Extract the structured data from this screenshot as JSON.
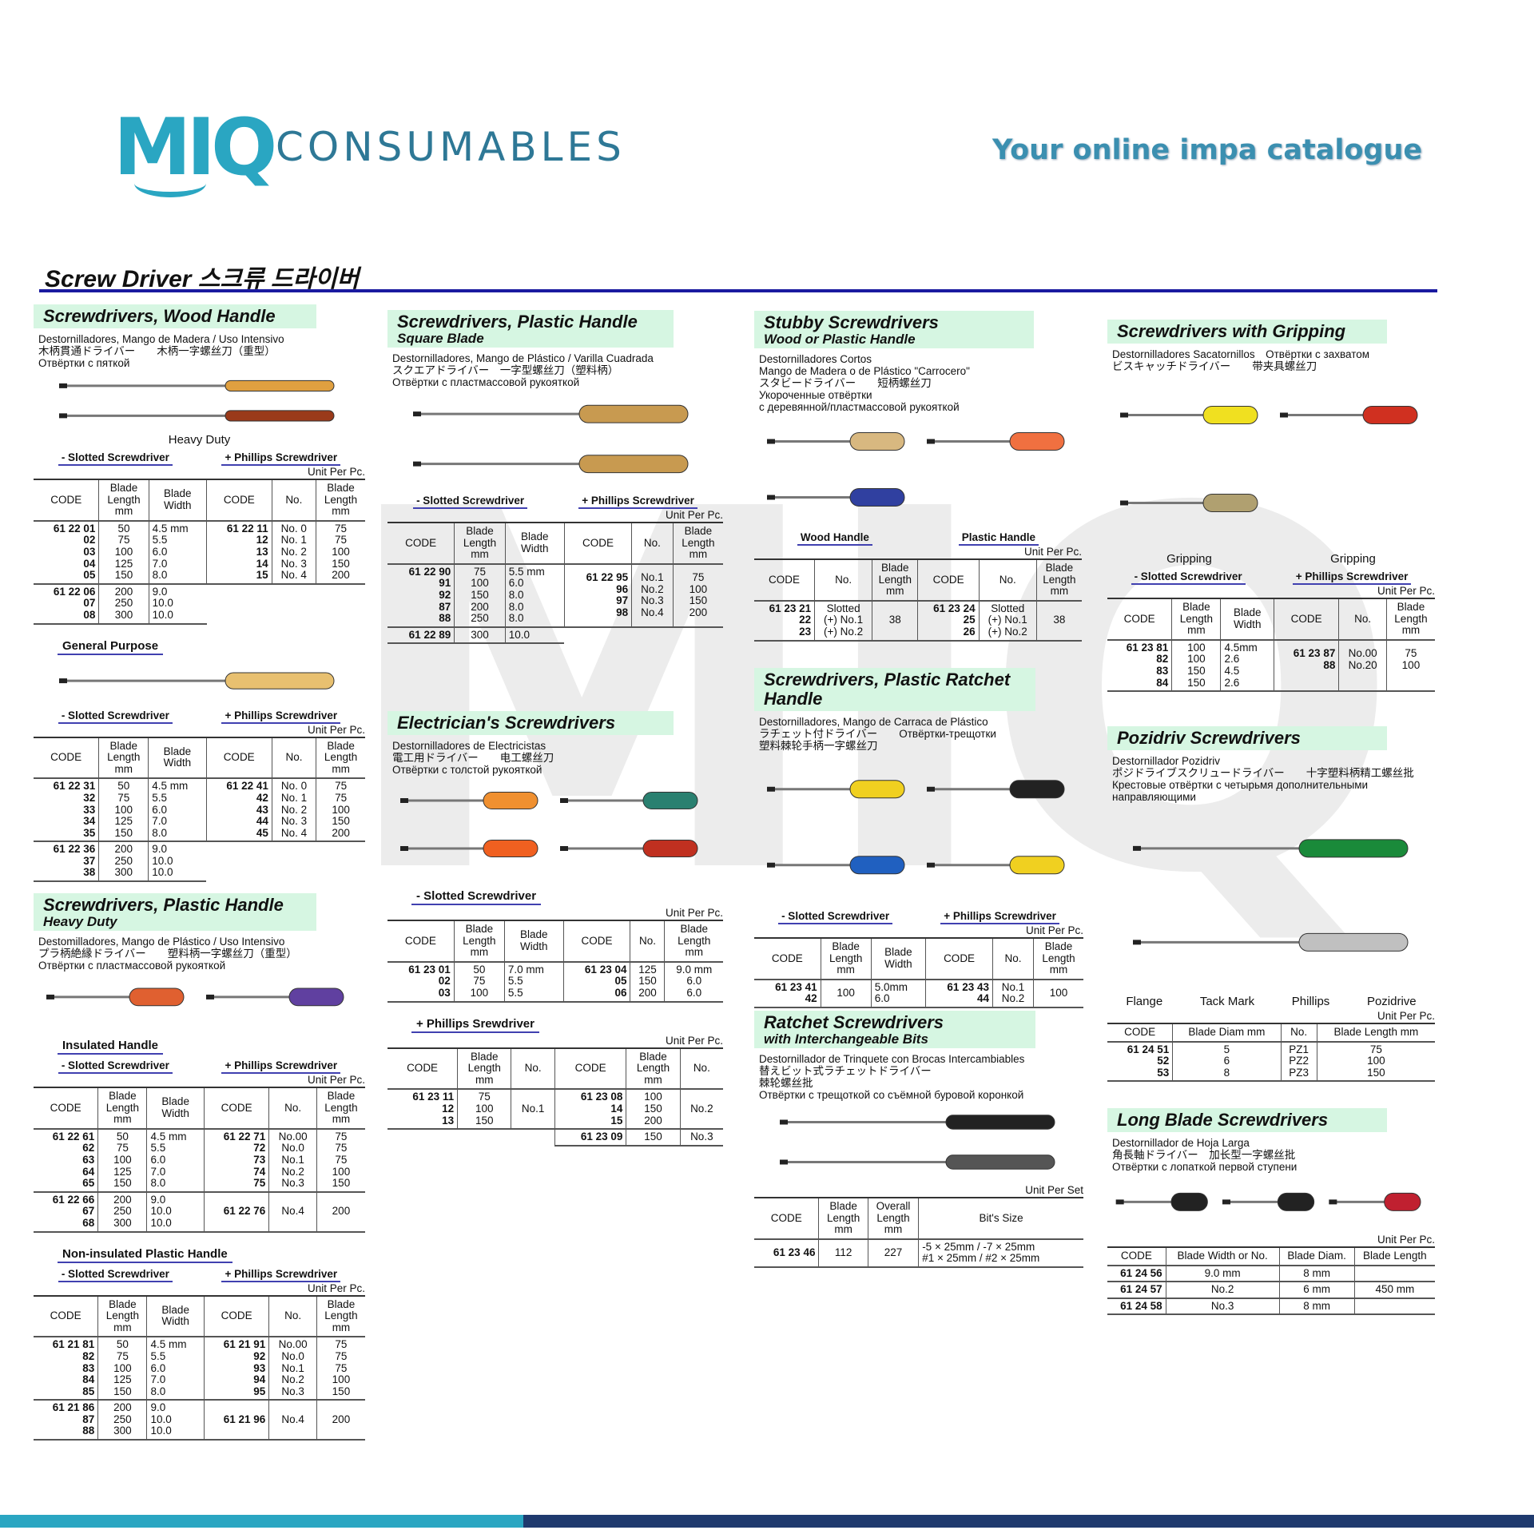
{
  "header": {
    "logo_mark": "MIQ",
    "brand": "CONSUMABLES",
    "tagline": "Your online impa catalogue",
    "page_title": "Screw Driver 스크류 드라이버"
  },
  "watermark": "MIQ",
  "colors": {
    "brand": "#2aa6c2",
    "rule": "#1a1aa0",
    "band": "#d6f6e2",
    "underline": "#4040b0",
    "footer_navy": "#1f3a6e"
  },
  "sections": [
    {
      "title": "Screwdrivers, Wood Handle",
      "lines": [
        "Destornilladores, Mango de Madera / Uso Intensivo",
        "木柄貫通ドライバー　　木柄一字螺丝刀（重型）",
        "Отвёртки с пяткой"
      ],
      "blocks": [
        {
          "type": "figure",
          "labels": [
            "Heavy Duty"
          ],
          "handles": [
            "#e0a040",
            "#9a3a1a"
          ]
        },
        {
          "type": "subheads",
          "items": [
            "- Slotted Screwdriver",
            "+ Phillips Screwdriver"
          ]
        },
        {
          "type": "unit",
          "text": "Unit Per Pc."
        },
        {
          "type": "table",
          "cols": [
            "CODE",
            "Blade\nLength\nmm",
            "Blade\nWidth",
            "CODE",
            "No.",
            "Blade\nLength\nmm"
          ],
          "groups": [
            [
              "61 22 01\n02\n03\n04\n05",
              "50\n75\n100\n125\n150",
              "4.5 mm\n5.5\n6.0\n7.0\n8.0",
              "61 22 11\n12\n13\n14\n15",
              "No. 0\nNo. 1\nNo. 2\nNo. 3\nNo. 4",
              "75\n75\n100\n150\n200"
            ],
            [
              "61 22 06\n07\n08",
              "200\n250\n300",
              "9.0\n10.0\n10.0"
            ]
          ]
        },
        {
          "type": "label",
          "text": "General Purpose"
        },
        {
          "type": "figure",
          "labels": [],
          "handles": [
            "#e8c070"
          ]
        },
        {
          "type": "subheads",
          "items": [
            "- Slotted Screwdriver",
            "+ Phillips Screwdriver"
          ]
        },
        {
          "type": "unit",
          "text": "Unit Per Pc."
        },
        {
          "type": "table",
          "cols": [
            "CODE",
            "Blade\nLength\nmm",
            "Blade\nWidth",
            "CODE",
            "No.",
            "Blade\nLength\nmm"
          ],
          "groups": [
            [
              "61 22 31\n32\n33\n34\n35",
              "50\n75\n100\n125\n150",
              "4.5 mm\n5.5\n6.0\n7.0\n8.0",
              "61 22 41\n42\n43\n44\n45",
              "No. 0\nNo. 1\nNo. 2\nNo. 3\nNo. 4",
              "75\n75\n100\n150\n200"
            ],
            [
              "61 22 36\n37\n38",
              "200\n250\n300",
              "9.0\n10.0\n10.0"
            ]
          ]
        }
      ]
    },
    {
      "title": "Screwdrivers, Plastic Handle",
      "subtitle": "Heavy Duty",
      "lines": [
        "Destomilladores, Mango de Plástico / Uso Intensivo",
        "プラ柄絶縁ドライバー　　塑料柄一字螺丝刀（重型）",
        "Отвёртки с пластмассовой рукояткой"
      ],
      "blocks": [
        {
          "type": "figure",
          "labels": [],
          "handles": [
            "#e06030",
            "#6040a0"
          ]
        },
        {
          "type": "label",
          "text": "Insulated Handle"
        },
        {
          "type": "subheads",
          "items": [
            "- Slotted Screwdriver",
            "+ Phillips Screwdriver"
          ]
        },
        {
          "type": "unit",
          "text": "Unit Per Pc."
        },
        {
          "type": "table",
          "cols": [
            "CODE",
            "Blade\nLength\nmm",
            "Blade\nWidth",
            "CODE",
            "No.",
            "Blade\nLength\nmm"
          ],
          "groups": [
            [
              "61 22 61\n62\n63\n64\n65",
              "50\n75\n100\n125\n150",
              "4.5 mm\n5.5\n6.0\n7.0\n8.0",
              "61 22 71\n72\n73\n74\n75",
              "No.00\nNo.0\nNo.1\nNo.2\nNo.3",
              "75\n75\n75\n100\n150"
            ],
            [
              "61 22 66\n67\n68",
              "200\n250\n300",
              "9.0\n10.0\n10.0",
              "61 22 76",
              "No.4",
              "200"
            ]
          ]
        },
        {
          "type": "label",
          "text": "Non-insulated Plastic Handle"
        },
        {
          "type": "subheads",
          "items": [
            "- Slotted Screwdriver",
            "+ Phillips Screwdriver"
          ]
        },
        {
          "type": "unit",
          "text": "Unit Per Pc."
        },
        {
          "type": "table",
          "cols": [
            "CODE",
            "Blade\nLength\nmm",
            "Blade\nWidth",
            "CODE",
            "No.",
            "Blade\nLength\nmm"
          ],
          "groups": [
            [
              "61 21 81\n82\n83\n84\n85",
              "50\n75\n100\n125\n150",
              "4.5 mm\n5.5\n6.0\n7.0\n8.0",
              "61 21 91\n92\n93\n94\n95",
              "No.00\nNo.0\nNo.1\nNo.2\nNo.3",
              "75\n75\n75\n100\n150"
            ],
            [
              "61 21 86\n87\n88",
              "200\n250\n300",
              "9.0\n10.0\n10.0",
              "61 21 96",
              "No.4",
              "200"
            ]
          ]
        }
      ]
    },
    {
      "title": "Screwdrivers, Plastic Handle",
      "subtitle": "Square Blade",
      "lines": [
        "Destornilladores, Mango de Plástico / Varilla Cuadrada",
        "スクエアドライバー　一字型螺丝刀（塑料柄）",
        "Отвёртки с пластмассовой рукояткой"
      ],
      "blocks": [
        {
          "type": "figure",
          "labels": [],
          "handles": [
            "#c89a50",
            "#c89a50"
          ]
        },
        {
          "type": "subheads",
          "items": [
            "- Slotted Screwdriver",
            "+ Phillips Screwdriver"
          ]
        },
        {
          "type": "unit",
          "text": "Unit Per Pc."
        },
        {
          "type": "table",
          "cols": [
            "CODE",
            "Blade\nLength\nmm",
            "Blade\nWidth",
            "CODE",
            "No.",
            "Blade\nLength\nmm"
          ],
          "groups": [
            [
              "61 22 90\n91\n92\n87\n88",
              "75\n100\n150\n200\n250",
              "5.5 mm\n6.0\n8.0\n8.0\n8.0",
              "61 22 95\n96\n97\n98\n ",
              "No.1\nNo.2\nNo.3\nNo.4\n ",
              "75\n100\n150\n200\n "
            ],
            [
              "61 22 89",
              "300",
              "10.0"
            ]
          ]
        }
      ]
    },
    {
      "title": "Electrician's Screwdrivers",
      "lines": [
        "Destornilladores de Electricistas",
        "電工用ドライバー　　电工螺丝刀",
        "Отвёртки с толстой рукояткой"
      ],
      "blocks": [
        {
          "type": "figure",
          "labels": [],
          "handles": [
            "#f09030",
            "#2a8070",
            "#f06020",
            "#c03020"
          ]
        },
        {
          "type": "label",
          "text": "- Slotted Screwdriver"
        },
        {
          "type": "unit",
          "text": "Unit Per Pc."
        },
        {
          "type": "table",
          "cols": [
            "CODE",
            "Blade\nLength\nmm",
            "Blade\nWidth",
            "CODE",
            "No.",
            "Blade\nLength\nmm"
          ],
          "groups": [
            [
              "61 23 01\n02\n03",
              "50\n75\n100",
              "7.0 mm\n5.5\n5.5",
              "61 23 04\n05\n06",
              "125\n150\n200",
              "9.0 mm\n6.0\n6.0"
            ]
          ]
        },
        {
          "type": "label",
          "text": "+ Phillips Srewdriver"
        },
        {
          "type": "unit",
          "text": "Unit Per Pc."
        },
        {
          "type": "table",
          "cols": [
            "CODE",
            "Blade\nLength\nmm",
            "No.",
            "CODE",
            "Blade\nLength\nmm",
            "No."
          ],
          "groups": [
            [
              "61 23 11\n12\n13",
              "75\n100\n150",
              "No.1",
              "61 23 08\n14\n15",
              "100\n150\n200",
              "No.2"
            ],
            [
              "",
              "",
              "",
              "61 23 09",
              "150",
              "No.3"
            ]
          ]
        }
      ]
    },
    {
      "title": "Stubby Screwdrivers",
      "subtitle": "Wood or Plastic Handle",
      "lines": [
        "Destornilladores Cortos",
        "Mango de Madera o de Plástico \"Carrocero\"",
        "スタビードライバー　　短柄螺丝刀",
        "Укороченные отвёртки",
        "с деревянной/пластмассовой рукояткой"
      ],
      "blocks": [
        {
          "type": "figure",
          "labels": [],
          "handles": [
            "#d8b880",
            "#f07040",
            "#3040a0"
          ]
        },
        {
          "type": "subheads",
          "items": [
            "Wood Handle",
            "Plastic Handle"
          ]
        },
        {
          "type": "unit",
          "text": "Unit Per Pc."
        },
        {
          "type": "table",
          "cols": [
            "CODE",
            "No.",
            "Blade\nLength\nmm",
            "CODE",
            "No.",
            "Blade\nLength\nmm"
          ],
          "groups": [
            [
              "61 23 21\n22\n23",
              "Slotted\n(+) No.1\n(+) No.2",
              "38",
              "61 23 24\n25\n26",
              "Slotted\n(+) No.1\n(+) No.2",
              "38"
            ]
          ]
        }
      ]
    },
    {
      "title": "Screwdrivers, Plastic Ratchet Handle",
      "lines": [
        "Destornilladores, Mango de Carraca de Plástico",
        "ラチェット付ドライバー　　Отвёртки-трещотки",
        "塑料棘轮手柄一字螺丝刀"
      ],
      "blocks": [
        {
          "type": "figure",
          "labels": [],
          "handles": [
            "#f0d020",
            "#222222",
            "#2060c0",
            "#f0d020"
          ]
        },
        {
          "type": "subheads",
          "items": [
            "- Slotted Screwdriver",
            "+ Phillips Screwdriver"
          ]
        },
        {
          "type": "unit",
          "text": "Unit Per Pc."
        },
        {
          "type": "table",
          "cols": [
            "CODE",
            "Blade\nLength\nmm",
            "Blade\nWidth",
            "CODE",
            "No.",
            "Blade\nLength\nmm"
          ],
          "groups": [
            [
              "61 23 41\n42",
              "100",
              "5.0mm\n6.0",
              "61 23 43\n44",
              "No.1\nNo.2",
              "100"
            ]
          ]
        }
      ]
    },
    {
      "title": "Ratchet Screwdrivers",
      "subtitle": "with Interchangeable Bits",
      "lines": [
        "Destornillador de Trinquete con Brocas Intercambiables",
        "替えビット式ラチェットドライバー",
        "棘轮螺丝批",
        "Отвёртки с трещоткой со съёмной буровой коронкой"
      ],
      "blocks": [
        {
          "type": "figure",
          "labels": [],
          "handles": [
            "#222222",
            "#555555"
          ]
        },
        {
          "type": "unit",
          "text": "Unit Per Set"
        },
        {
          "type": "table",
          "cols": [
            "CODE",
            "Blade\nLength\nmm",
            "Overall\nLength\nmm",
            "Bit's Size"
          ],
          "groups": [
            [
              "61 23 46",
              "112",
              "227",
              "-5  × 25mm / -7 × 25mm\n#1 × 25mm / #2 × 25mm"
            ]
          ]
        }
      ]
    },
    {
      "title": "Screwdrivers with Gripping",
      "lines": [
        "Destornilladores Sacatornillos　Отвёртки с захватом",
        "ビスキャッチドライバー　　带夹具螺丝刀"
      ],
      "blocks": [
        {
          "type": "figure",
          "labels": [
            "Gripping",
            "Gripping"
          ],
          "handles": [
            "#f0e020",
            "#d03020",
            "#b0a070"
          ]
        },
        {
          "type": "subheads",
          "items": [
            "-  Slotted Screwdriver",
            "+ Phillips Screwdriver"
          ]
        },
        {
          "type": "unit",
          "text": "Unit Per Pc."
        },
        {
          "type": "table",
          "cols": [
            "CODE",
            "Blade\nLength\nmm",
            "Blade\nWidth",
            "CODE",
            "No.",
            "Blade\nLength\nmm"
          ],
          "groups": [
            [
              "61 23 81\n82\n83\n84",
              "100\n100\n150\n150",
              "4.5mm\n2.6\n4.5\n2.6",
              "61 23 87\n88\n \n ",
              "No.00\nNo.20\n \n ",
              "75\n100\n \n "
            ]
          ]
        }
      ]
    },
    {
      "title": "Pozidriv Screwdrivers",
      "lines": [
        "Destornillador Pozidriv",
        "ポジドライブスクリュードライバー　　十字塑料柄精工螺丝批",
        "Крестовые отвёртки с четырьмя дополнительными",
        "направляющими"
      ],
      "blocks": [
        {
          "type": "figure",
          "labels": [
            "Flange",
            "Tack Mark",
            "Phillips",
            "Pozidrive"
          ],
          "handles": [
            "#1a8a3a",
            "#c0c0c0"
          ]
        },
        {
          "type": "unit",
          "text": "Unit Per Pc."
        },
        {
          "type": "table",
          "cols": [
            "CODE",
            "Blade Diam mm",
            "No.",
            "Blade Length mm"
          ],
          "groups": [
            [
              "61 24 51\n52\n53",
              "5\n6\n8",
              "PZ1\nPZ2\nPZ3",
              "75\n100\n150"
            ]
          ]
        }
      ]
    },
    {
      "title": "Long Blade Screwdrivers",
      "lines": [
        "Destornillador de Hoja Larga",
        "角長軸ドライバー　加长型一字螺丝批",
        "Отвёртки с лопаткой первой ступени"
      ],
      "blocks": [
        {
          "type": "figure",
          "labels": [],
          "handles": [
            "#222222",
            "#222222",
            "#c02030"
          ]
        },
        {
          "type": "unit",
          "text": "Unit Per Pc."
        },
        {
          "type": "table",
          "cols": [
            "CODE",
            "Blade Width or No.",
            "Blade Diam.",
            "Blade Length"
          ],
          "groups": [
            [
              "61 24 56",
              "9.0 mm",
              "8 mm",
              ""
            ],
            [
              "61 24 57",
              "No.2",
              "6 mm",
              "450 mm"
            ],
            [
              "61 24 58",
              "No.3",
              "8 mm",
              ""
            ]
          ]
        }
      ]
    }
  ]
}
